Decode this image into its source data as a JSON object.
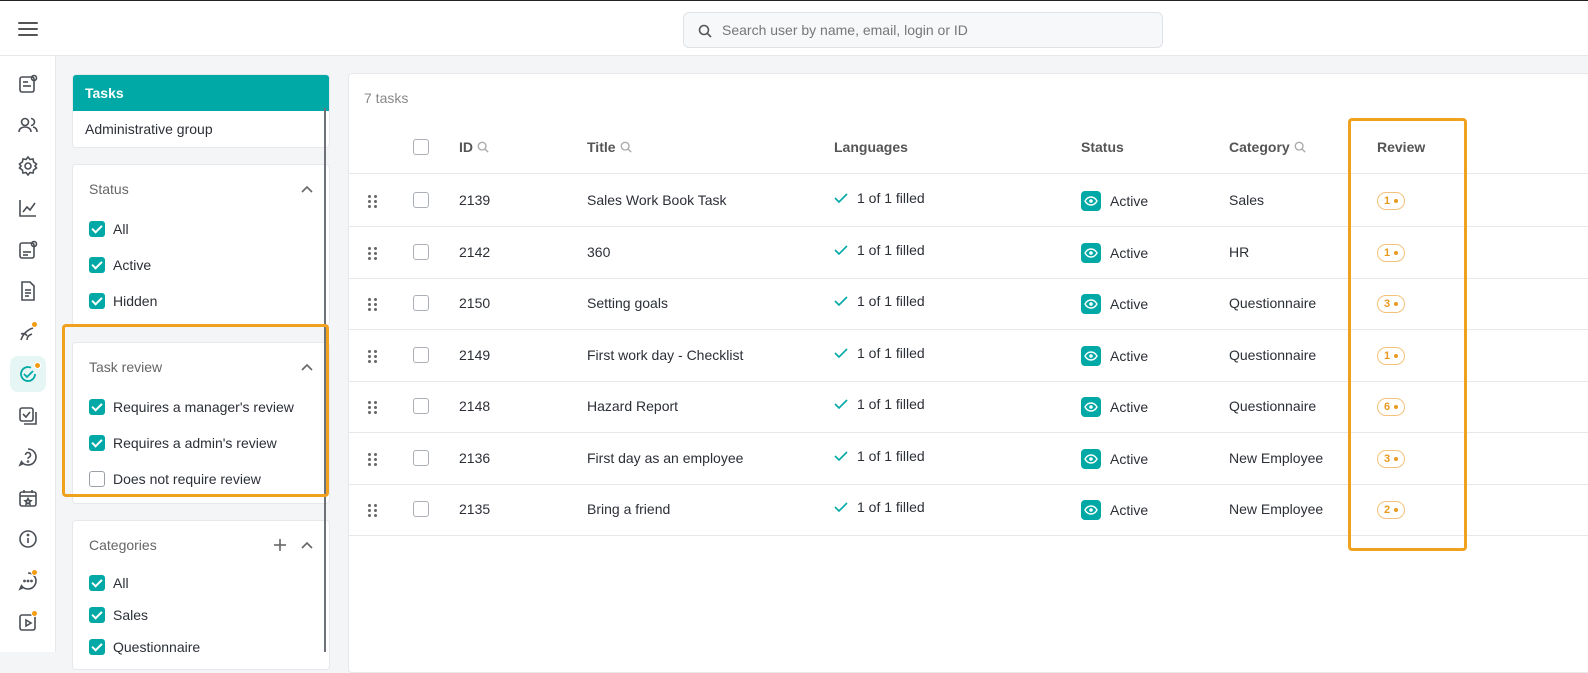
{
  "search": {
    "placeholder": "Search user by name, email, login or ID"
  },
  "tabs": [
    {
      "label": "Tasks"
    },
    {
      "label": "Administrative group"
    }
  ],
  "filters": {
    "status": {
      "title": "Status",
      "options": [
        {
          "label": "All",
          "checked": true
        },
        {
          "label": "Active",
          "checked": true
        },
        {
          "label": "Hidden",
          "checked": true
        }
      ]
    },
    "task_review": {
      "title": "Task review",
      "options": [
        {
          "label": "Requires a manager's review",
          "checked": true
        },
        {
          "label": "Requires a admin's review",
          "checked": true
        },
        {
          "label": "Does not require review",
          "checked": false
        }
      ]
    },
    "categories": {
      "title": "Categories",
      "options": [
        {
          "label": "All",
          "checked": true
        },
        {
          "label": "Sales",
          "checked": true
        },
        {
          "label": "Questionnaire",
          "checked": true
        }
      ]
    }
  },
  "table": {
    "count_label": "7 tasks",
    "headers": {
      "id": "ID",
      "title": "Title",
      "languages": "Languages",
      "status": "Status",
      "category": "Category",
      "review": "Review"
    },
    "rows": [
      {
        "id": "2139",
        "title": "Sales Work Book Task",
        "languages": "1 of 1 filled",
        "status": "Active",
        "category": "Sales",
        "review": "1"
      },
      {
        "id": "2142",
        "title": "360",
        "languages": "1 of 1 filled",
        "status": "Active",
        "category": "HR",
        "review": "1"
      },
      {
        "id": "2150",
        "title": "Setting goals",
        "languages": "1 of 1 filled",
        "status": "Active",
        "category": "Questionnaire",
        "review": "3"
      },
      {
        "id": "2149",
        "title": "First work day - Checklist",
        "languages": "1 of 1 filled",
        "status": "Active",
        "category": "Questionnaire",
        "review": "1"
      },
      {
        "id": "2148",
        "title": "Hazard Report",
        "languages": "1 of 1 filled",
        "status": "Active",
        "category": "Questionnaire",
        "review": "6"
      },
      {
        "id": "2136",
        "title": "First day as an employee",
        "languages": "1 of 1 filled",
        "status": "Active",
        "category": "New Employee",
        "review": "3"
      },
      {
        "id": "2135",
        "title": "Bring a friend",
        "languages": "1 of 1 filled",
        "status": "Active",
        "category": "New Employee",
        "review": "2"
      }
    ]
  },
  "colors": {
    "accent": "#00a9a5",
    "highlight": "#f0a21e",
    "badge": "#e89a1f",
    "notification_dot": "#f39c12"
  },
  "rail_icons": [
    "news-icon",
    "users-icon",
    "settings-icon",
    "analytics-icon",
    "profile-card-icon",
    "document-icon",
    "onboarding-icon",
    "tasks-icon",
    "checklist-icon",
    "help-icon",
    "calendar-icon",
    "info-icon",
    "chat-icon",
    "video-icon"
  ]
}
